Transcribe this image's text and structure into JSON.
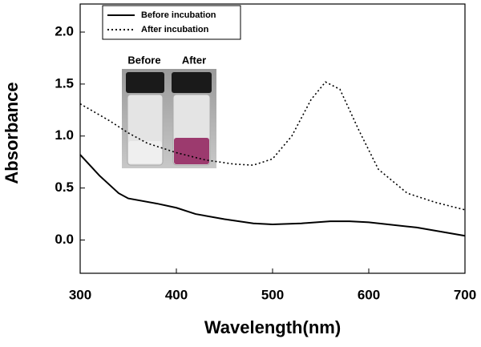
{
  "chart_data": {
    "type": "line",
    "x_label": "Wavelength(nm)",
    "y_label": "Absorbance",
    "xlim": [
      300,
      700
    ],
    "xticks": [
      300,
      400,
      500,
      600,
      700
    ],
    "ylim": [
      -0.32,
      2.27
    ],
    "yticks": [
      {
        "value": 0,
        "label": "0.0"
      },
      {
        "value": 0.5,
        "label": "0.5"
      },
      {
        "value": 1,
        "label": "1.0"
      },
      {
        "value": 1.5,
        "label": "1.5"
      },
      {
        "value": 2,
        "label": "2.0"
      }
    ],
    "legend": "upper left",
    "annotations": [
      "Before",
      "After"
    ],
    "series": [
      {
        "name": "Before incubation",
        "color": "#000000",
        "style": "solid",
        "x": [
          300,
          320,
          340,
          350,
          380,
          400,
          420,
          450,
          480,
          500,
          530,
          560,
          580,
          600,
          650,
          700
        ],
        "values": [
          0.82,
          0.62,
          0.45,
          0.4,
          0.35,
          0.31,
          0.25,
          0.2,
          0.16,
          0.15,
          0.16,
          0.18,
          0.18,
          0.17,
          0.12,
          0.04
        ]
      },
      {
        "name": "After incubation",
        "color": "#000000",
        "style": "dotted",
        "x": [
          300,
          330,
          350,
          370,
          400,
          430,
          460,
          480,
          500,
          520,
          540,
          555,
          570,
          590,
          610,
          640,
          670,
          700
        ],
        "values": [
          1.31,
          1.15,
          1.03,
          0.93,
          0.84,
          0.77,
          0.73,
          0.72,
          0.78,
          1.0,
          1.35,
          1.52,
          1.45,
          1.05,
          0.68,
          0.45,
          0.36,
          0.29
        ]
      }
    ]
  }
}
